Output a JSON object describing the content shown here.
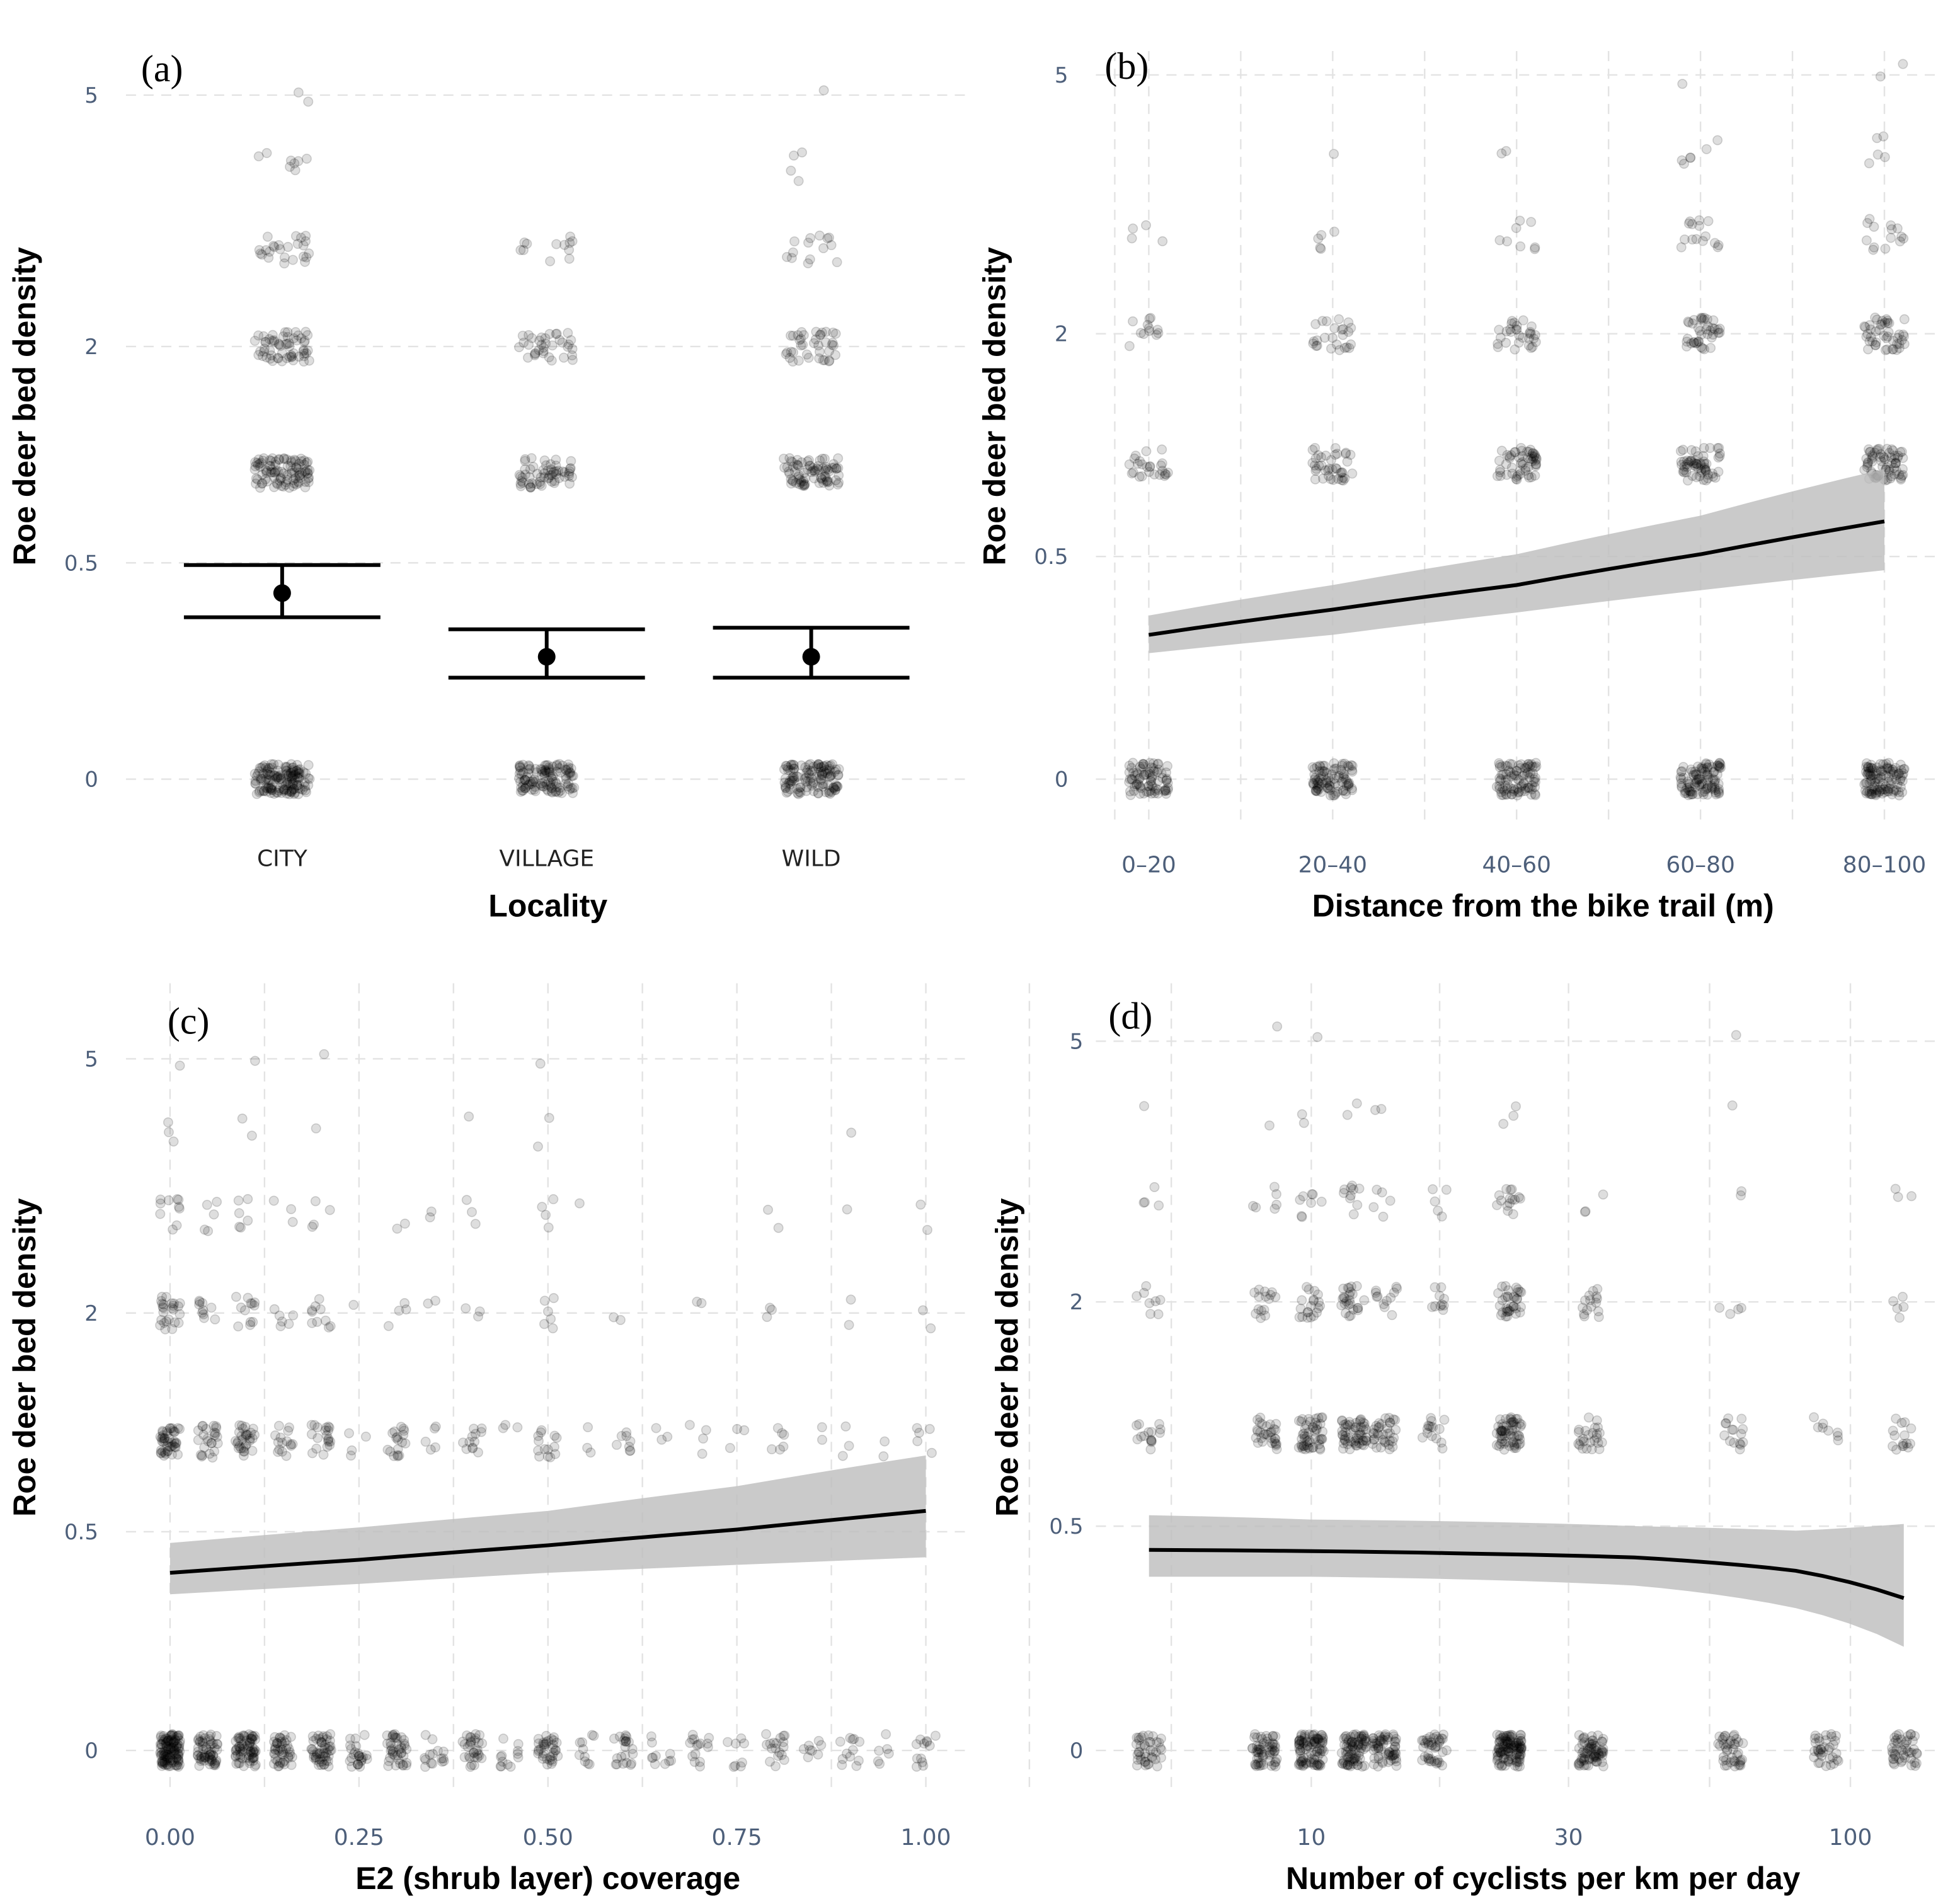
{
  "chart_data": [
    {
      "panel": "(a)",
      "type": "scatter",
      "title": "",
      "xlabel": "Locality",
      "ylabel": "Roe deer bed density",
      "y_scale": "sqrt",
      "ylim": [
        0,
        5
      ],
      "yticks": [
        "0",
        "0.5",
        "2",
        "5"
      ],
      "ytick_values": [
        0,
        0.5,
        2,
        5
      ],
      "categories": [
        "CITY",
        "VILLAGE",
        "WILD"
      ],
      "estimates": [
        {
          "mean": 0.37,
          "lower": 0.28,
          "upper": 0.49
        },
        {
          "mean": 0.16,
          "lower": 0.11,
          "upper": 0.24
        },
        {
          "mean": 0.16,
          "lower": 0.11,
          "upper": 0.245
        }
      ],
      "point_counts_by_level": {
        "levels": [
          0,
          1,
          2,
          3,
          4,
          5
        ],
        "CITY": [
          150,
          100,
          60,
          25,
          8,
          2
        ],
        "VILLAGE": [
          120,
          60,
          35,
          12,
          0,
          0
        ],
        "WILD": [
          120,
          80,
          40,
          14,
          4,
          1
        ]
      }
    },
    {
      "panel": "(b)",
      "type": "line",
      "xlabel": "Distance from the bike trail (m)",
      "ylabel": "Roe deer bed density",
      "y_scale": "sqrt",
      "ylim": [
        0,
        5
      ],
      "yticks": [
        "0",
        "0.5",
        "2",
        "5"
      ],
      "ytick_values": [
        0,
        0.5,
        2,
        5
      ],
      "categories": [
        "0–20",
        "20–40",
        "40–60",
        "60–80",
        "80–100"
      ],
      "fit": {
        "values": [
          0.21,
          0.29,
          0.38,
          0.51,
          0.67
        ],
        "lower": [
          0.16,
          0.21,
          0.28,
          0.36,
          0.44
        ],
        "upper": [
          0.27,
          0.38,
          0.51,
          0.7,
          0.97
        ]
      },
      "point_counts_by_level": {
        "levels": [
          0,
          1,
          2,
          3,
          4,
          5
        ],
        "counts": [
          [
            80,
            25,
            12,
            4,
            0,
            0
          ],
          [
            90,
            40,
            25,
            5,
            1,
            0
          ],
          [
            90,
            55,
            30,
            8,
            2,
            0
          ],
          [
            100,
            60,
            40,
            15,
            6,
            1
          ],
          [
            110,
            70,
            45,
            14,
            5,
            2
          ]
        ]
      }
    },
    {
      "panel": "(c)",
      "type": "line",
      "xlabel": "E2 (shrub layer) coverage",
      "ylabel": "Roe deer bed density",
      "y_scale": "sqrt",
      "ylim": [
        0,
        5
      ],
      "yticks": [
        "0",
        "0.5",
        "2",
        "5"
      ],
      "ytick_values": [
        0,
        0.5,
        2,
        5
      ],
      "xticks": [
        "0.00",
        "0.25",
        "0.50",
        "0.75",
        "1.00"
      ],
      "xtick_values": [
        0,
        0.25,
        0.5,
        0.75,
        1
      ],
      "xlim": [
        0,
        1
      ],
      "fit": {
        "x": [
          0,
          0.25,
          0.5,
          0.75,
          1
        ],
        "values": [
          0.33,
          0.38,
          0.44,
          0.51,
          0.6
        ],
        "lower": [
          0.255,
          0.29,
          0.33,
          0.36,
          0.39
        ],
        "upper": [
          0.45,
          0.52,
          0.6,
          0.73,
          0.91
        ]
      },
      "groups_x": [
        0,
        0.05,
        0.1,
        0.15,
        0.2,
        0.25,
        0.3,
        0.35,
        0.4,
        0.45,
        0.5,
        0.55,
        0.6,
        0.65,
        0.7,
        0.75,
        0.8,
        0.85,
        0.9,
        0.95,
        1
      ],
      "group_counts": [
        [
          120,
          45,
          25,
          10,
          3,
          1
        ],
        [
          60,
          25,
          10,
          5,
          0,
          0
        ],
        [
          70,
          30,
          12,
          6,
          2,
          1
        ],
        [
          45,
          15,
          6,
          3,
          0,
          0
        ],
        [
          50,
          20,
          10,
          4,
          1,
          1
        ],
        [
          25,
          4,
          1,
          0,
          0,
          0
        ],
        [
          40,
          18,
          4,
          2,
          0,
          0
        ],
        [
          15,
          5,
          2,
          2,
          0,
          0
        ],
        [
          30,
          12,
          3,
          3,
          1,
          0
        ],
        [
          12,
          3,
          0,
          0,
          0,
          0
        ],
        [
          35,
          14,
          6,
          4,
          2,
          1
        ],
        [
          10,
          3,
          0,
          1,
          0,
          0
        ],
        [
          22,
          8,
          2,
          0,
          0,
          0
        ],
        [
          10,
          3,
          0,
          0,
          0,
          0
        ],
        [
          15,
          4,
          2,
          0,
          0,
          0
        ],
        [
          8,
          3,
          0,
          0,
          0,
          0
        ],
        [
          18,
          6,
          3,
          2,
          0,
          0
        ],
        [
          8,
          2,
          0,
          0,
          0,
          0
        ],
        [
          12,
          3,
          2,
          1,
          1,
          0
        ],
        [
          6,
          2,
          0,
          0,
          0,
          0
        ],
        [
          12,
          5,
          2,
          2,
          0,
          0
        ]
      ]
    },
    {
      "panel": "(d)",
      "type": "line",
      "xlabel": "Number of cyclists per km per day",
      "ylabel": "Roe deer bed density",
      "y_scale": "sqrt",
      "ylim": [
        0,
        5
      ],
      "yticks": [
        "0",
        "0.5",
        "2",
        "5"
      ],
      "ytick_values": [
        0,
        0.5,
        2,
        5
      ],
      "x_scale": "log10",
      "xticks": [
        "10",
        "30",
        "100"
      ],
      "xtick_values": [
        10,
        30,
        100
      ],
      "xlim": [
        4,
        150
      ],
      "fit": {
        "x": [
          5,
          10,
          20,
          40,
          80,
          126
        ],
        "values": [
          0.4,
          0.395,
          0.385,
          0.37,
          0.32,
          0.23
        ],
        "lower": [
          0.3,
          0.3,
          0.29,
          0.27,
          0.2,
          0.106
        ],
        "upper": [
          0.55,
          0.53,
          0.52,
          0.5,
          0.48,
          0.51
        ]
      },
      "groups_x": [
        5,
        8.2,
        10,
        12,
        13.7,
        16.9,
        23.3,
        33,
        60,
        90,
        126
      ],
      "group_counts": [
        [
          40,
          15,
          8,
          4,
          1,
          0
        ],
        [
          60,
          30,
          15,
          6,
          1,
          1
        ],
        [
          90,
          50,
          20,
          8,
          2,
          1
        ],
        [
          80,
          55,
          25,
          10,
          2,
          0
        ],
        [
          60,
          35,
          12,
          5,
          2,
          0
        ],
        [
          40,
          15,
          10,
          5,
          0,
          0
        ],
        [
          110,
          60,
          35,
          15,
          3,
          0
        ],
        [
          70,
          25,
          15,
          3,
          0,
          0
        ],
        [
          40,
          15,
          4,
          2,
          1,
          1
        ],
        [
          35,
          8,
          0,
          0,
          0,
          0
        ],
        [
          45,
          15,
          5,
          3,
          0,
          0
        ]
      ]
    }
  ],
  "labels": {
    "a": "(a)",
    "b": "(b)",
    "c": "(c)",
    "d": "(d)"
  }
}
